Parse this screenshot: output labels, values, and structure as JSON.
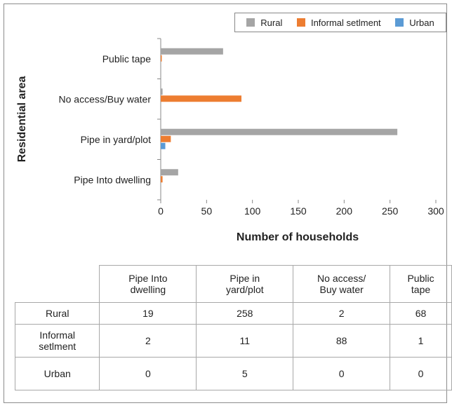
{
  "chart_data": {
    "type": "bar",
    "orientation": "horizontal",
    "categories": [
      "Pipe Into dwelling",
      "Pipe in yard/plot",
      "No access/Buy water",
      "Public tape"
    ],
    "series": [
      {
        "name": "Rural",
        "color": "#a5a5a5",
        "values": [
          19,
          258,
          2,
          68
        ]
      },
      {
        "name": "Informal setlment",
        "color": "#ed7d31",
        "values": [
          2,
          11,
          88,
          1
        ]
      },
      {
        "name": "Urban",
        "color": "#5b9bd5",
        "values": [
          0,
          5,
          0,
          0
        ]
      }
    ],
    "xlabel": "Number of households",
    "ylabel": "Residential area",
    "xlim": [
      0,
      300
    ],
    "xticks": [
      "0",
      "50",
      "100",
      "150",
      "200",
      "250",
      "300"
    ],
    "grid": false,
    "legend_position": "top-right"
  },
  "table": {
    "headers": [
      "Pipe Into dwelling",
      "Pipe in yard/plot",
      "No access/ Buy water",
      "Public tape"
    ],
    "header_lines": [
      [
        "Pipe Into",
        "dwelling"
      ],
      [
        "Pipe in",
        "yard/plot"
      ],
      [
        "No access/",
        "Buy water"
      ],
      [
        "Public",
        "tape"
      ]
    ],
    "rows": [
      {
        "label": "Rural",
        "values": [
          "19",
          "258",
          "2",
          "68"
        ]
      },
      {
        "label": "Informal setlment",
        "label_lines": [
          "Informal",
          "setlment"
        ],
        "values": [
          "2",
          "11",
          "88",
          "1"
        ]
      },
      {
        "label": "Urban",
        "values": [
          "0",
          "5",
          "0",
          "0"
        ]
      }
    ]
  }
}
